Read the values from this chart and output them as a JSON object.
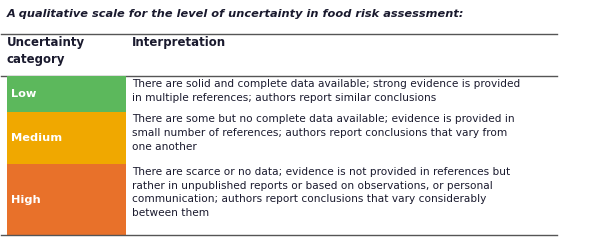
{
  "title": "A qualitative scale for the level of uncertainty in food risk assessment:",
  "col1_header": "Uncertainty\ncategory",
  "col2_header": "Interpretation",
  "rows": [
    {
      "category": "Low",
      "color": "#5cb85c",
      "text": "There are solid and complete data available; strong evidence is provided\nin multiple references; authors report similar conclusions"
    },
    {
      "category": "Medium",
      "color": "#f0a800",
      "text": "There are some but no complete data available; evidence is provided in\nsmall number of references; authors report conclusions that vary from\none another"
    },
    {
      "category": "High",
      "color": "#e8712a",
      "text": "There are scarce or no data; evidence is not provided in references but\nrather in unpublished reports or based on observations, or personal\ncommunication; authors report conclusions that vary considerably\nbetween them"
    }
  ],
  "background_color": "#ffffff",
  "text_color": "#1a1a2e",
  "header_text_color": "#1a1a2e",
  "title_color": "#1a1a2e",
  "line_color": "#555555",
  "figsize": [
    5.94,
    2.41
  ],
  "dpi": 100
}
